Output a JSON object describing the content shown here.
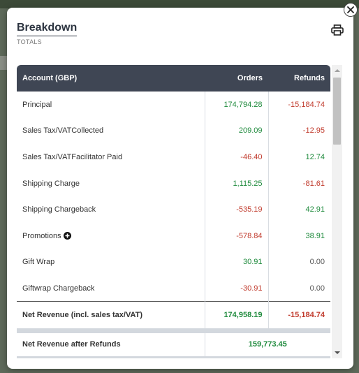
{
  "modal": {
    "title": "Breakdown",
    "subtitle": "TOTALS",
    "close_icon": "close-icon",
    "print_icon": "print-icon"
  },
  "table": {
    "headers": {
      "account": "Account (GBP)",
      "orders": "Orders",
      "refunds": "Refunds"
    },
    "rows": [
      {
        "label": "Principal",
        "orders": "174,794.28",
        "refunds": "-15,184.74"
      },
      {
        "label": "Sales Tax/VATCollected",
        "orders": "209.09",
        "refunds": "-12.95"
      },
      {
        "label": "Sales Tax/VATFacilitator Paid",
        "orders": "-46.40",
        "refunds": "12.74"
      },
      {
        "label": "Shipping Charge",
        "orders": "1,115.25",
        "refunds": "-81.61"
      },
      {
        "label": "Shipping Chargeback",
        "orders": "-535.19",
        "refunds": "42.91"
      },
      {
        "label": "Promotions",
        "orders": "-578.84",
        "refunds": "38.91",
        "expand_icon": "plus-circle-icon"
      },
      {
        "label": "Gift Wrap",
        "orders": "30.91",
        "refunds": "0.00"
      },
      {
        "label": "Giftwrap Chargeback",
        "orders": "-30.91",
        "refunds": "0.00"
      }
    ],
    "total": {
      "label": "Net Revenue (incl. sales tax/VAT)",
      "orders": "174,958.19",
      "refunds": "-15,184.74"
    },
    "after_refunds": {
      "label": "Net Revenue after Refunds",
      "value": "159,773.45"
    }
  },
  "colors": {
    "header_bg": "#3f4654",
    "positive": "#1e8a3c",
    "negative": "#c0392b"
  }
}
